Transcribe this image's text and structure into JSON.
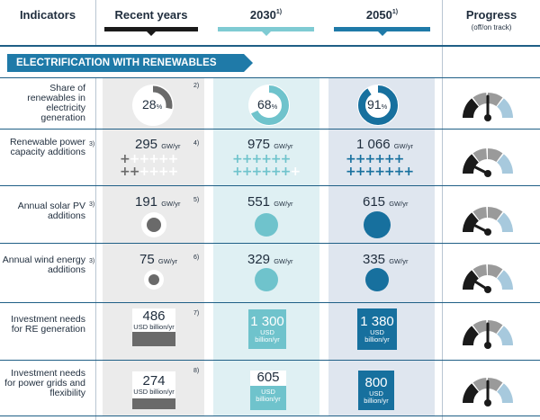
{
  "header": {
    "indicators": "Indicators",
    "recent": "Recent years",
    "y2030": "2030",
    "y2030_note": "1)",
    "y2050": "2050",
    "y2050_note": "1)",
    "progress": "Progress",
    "progress_sub": "(off/on track)"
  },
  "section": {
    "title": "ELECTRIFICATION WITH RENEWABLES"
  },
  "colors": {
    "recent_bar": "#1a1a1a",
    "y2030_bar": "#7fcbd3",
    "y2050_bar": "#1f7aa8",
    "recent_bg": "#ebebeb",
    "y2030_bg": "#dff0f3",
    "y2050_bg": "#dfe6ef",
    "dark_fill": "#6a6a6a",
    "light_fill": "#6fc3cc",
    "deep_fill": "#17709e"
  },
  "rows": [
    {
      "label": "Share of renewables in electricity generation",
      "note_left": "",
      "note_recent": "2)",
      "recent": {
        "value": "28",
        "unit": "%"
      },
      "y2030": {
        "value": "68",
        "unit": "%"
      },
      "y2050": {
        "value": "91",
        "unit": "%"
      },
      "recent_pct": 28,
      "y2030_pct": 68,
      "y2050_pct": 91,
      "progress": 0.5
    },
    {
      "label": "Renewable power capacity additions",
      "note_left": "3)",
      "note_recent": "4)",
      "recent": {
        "value": "295",
        "unit": "GW/yr"
      },
      "y2030": {
        "value": "975",
        "unit": "GW/yr"
      },
      "y2050": {
        "value": "1 066",
        "unit": "GW/yr"
      },
      "recent_crosses": [
        "+",
        "+",
        "+",
        "+",
        "+",
        "+",
        "+",
        "+",
        "+",
        "+",
        "+"
      ],
      "progress": 0.15
    },
    {
      "label": "Annual solar PV additions",
      "note_left": "3)",
      "note_recent": "5)",
      "recent": {
        "value": "191",
        "unit": "GW/yr"
      },
      "y2030": {
        "value": "551",
        "unit": "GW/yr"
      },
      "y2050": {
        "value": "615",
        "unit": "GW/yr"
      },
      "progress": 0.15
    },
    {
      "label": "Annual wind energy additions",
      "note_left": "3)",
      "note_recent": "6)",
      "recent": {
        "value": "75",
        "unit": "GW/yr"
      },
      "y2030": {
        "value": "329",
        "unit": "GW/yr"
      },
      "y2050": {
        "value": "335",
        "unit": "GW/yr"
      },
      "progress": 0.18
    },
    {
      "label": "Investment needs for RE generation",
      "note_left": "",
      "note_recent": "7)",
      "recent": {
        "value": "486",
        "unit": "USD billion/yr"
      },
      "y2030": {
        "value": "1 300",
        "unit1": "USD",
        "unit2": "billion/yr"
      },
      "y2050": {
        "value": "1 380",
        "unit1": "USD",
        "unit2": "billion/yr"
      },
      "progress": 0.5
    },
    {
      "label": "Investment needs for power grids and flexibility",
      "note_left": "",
      "note_recent": "8)",
      "recent": {
        "value": "274",
        "unit": "USD billion/yr"
      },
      "y2030": {
        "value": "605",
        "unit1": "USD",
        "unit2": "billion/yr"
      },
      "y2050": {
        "value": "800",
        "unit1": "USD",
        "unit2": "billion/yr"
      },
      "progress": 0.5
    }
  ]
}
